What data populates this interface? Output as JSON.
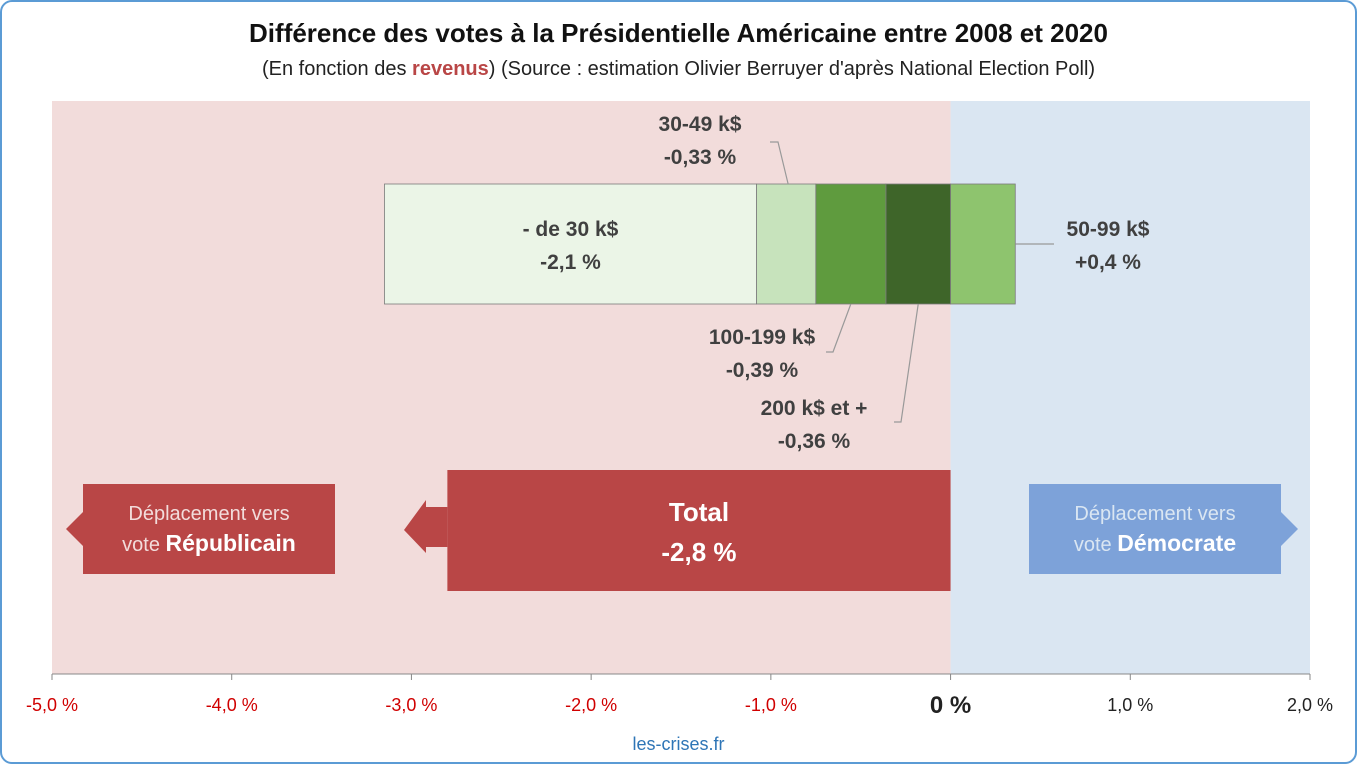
{
  "title": "Différence des votes à la Présidentielle Américaine entre 2008 et 2020",
  "subtitle": {
    "before": "(En fonction des ",
    "highlight": "revenus",
    "after": ") (Source : estimation Olivier Berruyer d'après National Election Poll)"
  },
  "source_label": "les-crises.fr",
  "colors": {
    "republican_bg": "#f2dcdb",
    "democrat_bg": "#dae6f2",
    "republican": "#b94646",
    "democrat": "#7da2d9",
    "negative_tick": "#d00000",
    "positive_tick": "#222222"
  },
  "chart_data": {
    "type": "bar",
    "orientation": "horizontal-stacked",
    "xlim": [
      -5.0,
      2.0
    ],
    "unit": "%",
    "x_ticks": [
      {
        "value": -5,
        "label": "-5,0 %"
      },
      {
        "value": -4,
        "label": "-4,0 %"
      },
      {
        "value": -3,
        "label": "-3,0 %"
      },
      {
        "value": -2,
        "label": "-2,0 %"
      },
      {
        "value": -1,
        "label": "-1,0 %"
      },
      {
        "value": 0,
        "label": "0 %"
      },
      {
        "value": 1,
        "label": "1,0 %"
      },
      {
        "value": 2,
        "label": "2,0 %"
      }
    ],
    "series": [
      {
        "name": "- de 30 k$",
        "value_label": "-2,1 %",
        "value": -2.07,
        "color": "#ebf5e7"
      },
      {
        "name": "30-49 k$",
        "value_label": "-0,33 %",
        "value": -0.33,
        "color": "#c7e3bc"
      },
      {
        "name": "100-199 k$",
        "value_label": "-0,39 %",
        "value": -0.39,
        "color": "#5f9b3e"
      },
      {
        "name": "200 k$ et +",
        "value_label": "-0,36 %",
        "value": -0.36,
        "color": "#3e6529"
      },
      {
        "name": "50-99 k$",
        "value_label": "+0,4 %",
        "value": 0.36,
        "color": "#8ec46e"
      }
    ],
    "total": {
      "name": "Total",
      "value_label": "-2,8 %",
      "value": -2.8
    },
    "regions": [
      {
        "text_before": "Déplacement vers",
        "text_plain": "vote ",
        "text_bold": "Républicain"
      },
      {
        "text_before": "Déplacement vers",
        "text_plain": "vote ",
        "text_bold": "Démocrate"
      }
    ]
  }
}
